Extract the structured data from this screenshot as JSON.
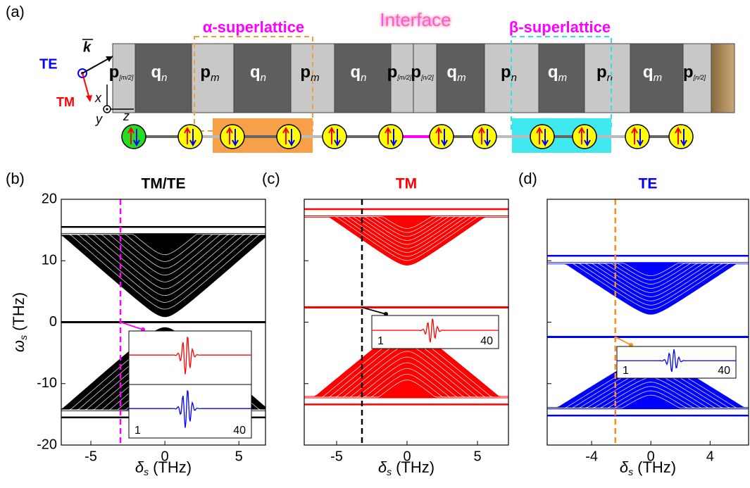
{
  "schematic": {
    "label": "(a)",
    "alpha_title": "α-superlattice",
    "interface_title": "Interface",
    "beta_title": "β-superlattice",
    "te": "TE",
    "tm": "TM",
    "k": "k",
    "axes": [
      "x",
      "y",
      "z"
    ],
    "layers": [
      {
        "name": "p",
        "sub": "[m/2]"
      },
      {
        "name": "q",
        "sub": "n"
      },
      {
        "name": "p",
        "sub": "m"
      },
      {
        "name": "q",
        "sub": "n"
      },
      {
        "name": "p",
        "sub": "m"
      },
      {
        "name": "q",
        "sub": "n"
      },
      {
        "name": "p",
        "sub": "[m/2]"
      },
      {
        "name": "p",
        "sub": "[n/2]"
      },
      {
        "name": "q",
        "sub": "m"
      },
      {
        "name": "p",
        "sub": "n"
      },
      {
        "name": "q",
        "sub": "m"
      },
      {
        "name": "p",
        "sub": "n"
      },
      {
        "name": "q",
        "sub": "m"
      },
      {
        "name": "p",
        "sub": "[n/2]"
      }
    ]
  },
  "chart_data": [
    {
      "type": "band",
      "panel": "(b)",
      "title": "TM/TE",
      "title_color": "#000000",
      "color": "#000000",
      "xlabel": {
        "symbol": "δ",
        "sub": "s",
        "unit": "(THz)"
      },
      "ylabel": {
        "symbol": "ω",
        "sub": "s",
        "unit": "(THz)"
      },
      "xlim": [
        -7,
        6.8
      ],
      "ylim": [
        -20,
        20
      ],
      "xticks": [
        -5,
        0,
        5
      ],
      "yticks": [
        -20,
        -10,
        0,
        10,
        20
      ],
      "ytick_labels": true,
      "bands": [
        {
          "apex": 1,
          "edge": 14.3,
          "slope": 2.1
        },
        {
          "apex": -1,
          "edge": -14.3,
          "slope": 2.1
        }
      ],
      "edge_state": 0,
      "marker": -3,
      "marker_color": "#ff00ff",
      "inset": {
        "traces": [
          "#ff0000",
          "#0000ff"
        ],
        "ticks": [
          1,
          40
        ]
      }
    },
    {
      "type": "band",
      "panel": "(c)",
      "title": "TM",
      "title_color": "#ff0000",
      "color": "#ff0000",
      "xlabel": {
        "symbol": "δ",
        "sub": "s",
        "unit": "(THz)"
      },
      "xlim": [
        -7.3,
        7.2
      ],
      "ylim": [
        -20,
        20
      ],
      "xticks": [
        -5,
        0,
        5
      ],
      "yticks": [
        -20,
        -10,
        0,
        10,
        20
      ],
      "ytick_labels": false,
      "bands": [
        {
          "apex": 9.4,
          "edge": 17.2,
          "slope": 1.6
        },
        {
          "apex": -1,
          "edge": -12.2,
          "slope": 1.9
        }
      ],
      "edge_state": 2.4,
      "marker": -3.2,
      "marker_color": "#000000",
      "inset": {
        "traces": [
          "#ff0000"
        ],
        "ticks": [
          1,
          40
        ]
      }
    },
    {
      "type": "band",
      "panel": "(d)",
      "title": "TE",
      "title_color": "#0000ff",
      "color": "#0000ff",
      "xlabel": {
        "symbol": "δ",
        "sub": "s",
        "unit": "(THz)"
      },
      "xlim": [
        -7,
        6.6
      ],
      "ylim": [
        -20,
        20
      ],
      "xticks": [
        -4,
        0,
        4
      ],
      "yticks": [
        -20,
        -10,
        0,
        10,
        20
      ],
      "ytick_labels": false,
      "bands": [
        {
          "apex": 1.4,
          "edge": 9.6,
          "slope": 1.6
        },
        {
          "apex": -5.5,
          "edge": -14,
          "slope": 1.5
        }
      ],
      "edge_state": -2.4,
      "marker": -2.4,
      "marker_color": "#ff8c1a",
      "inset": {
        "traces": [
          "#0000ff"
        ],
        "ticks": [
          1,
          40
        ]
      }
    }
  ]
}
